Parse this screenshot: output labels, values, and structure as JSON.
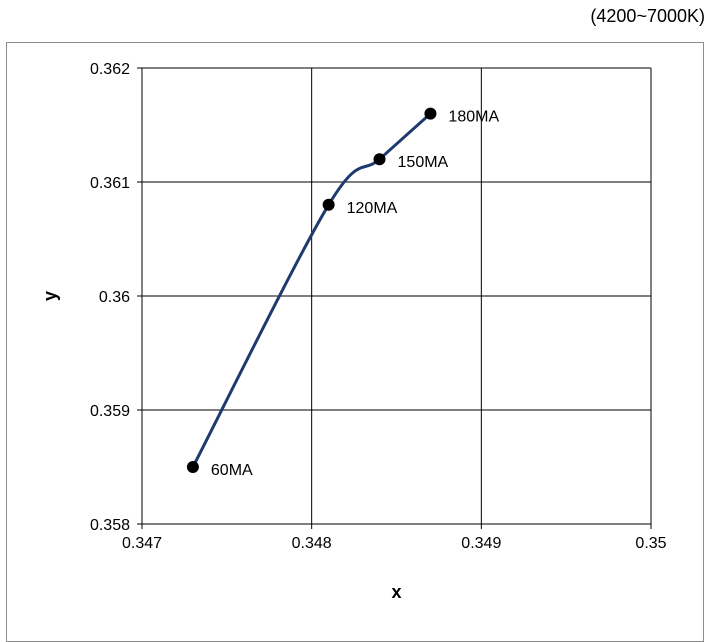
{
  "page": {
    "note": "(4200~7000K)"
  },
  "chart_data": {
    "type": "line",
    "title": "",
    "xlabel": "x",
    "ylabel": "y",
    "xlim": [
      0.347,
      0.35
    ],
    "ylim": [
      0.358,
      0.362
    ],
    "x_ticks": [
      "0.347",
      "0.348",
      "0.349",
      "0.35"
    ],
    "y_ticks": [
      "0.358",
      "0.359",
      "0.36",
      "0.361",
      "0.362"
    ],
    "grid": true,
    "legend": "none",
    "series": [
      {
        "line_color": "#1f3a6e",
        "marker_color": "#000000",
        "points": [
          {
            "x": 0.3473,
            "y": 0.3585,
            "label": "60MA"
          },
          {
            "x": 0.3481,
            "y": 0.3608,
            "label": "120MA"
          },
          {
            "x": 0.3484,
            "y": 0.3612,
            "label": "150MA"
          },
          {
            "x": 0.3487,
            "y": 0.3616,
            "label": "180MA"
          }
        ]
      }
    ]
  }
}
